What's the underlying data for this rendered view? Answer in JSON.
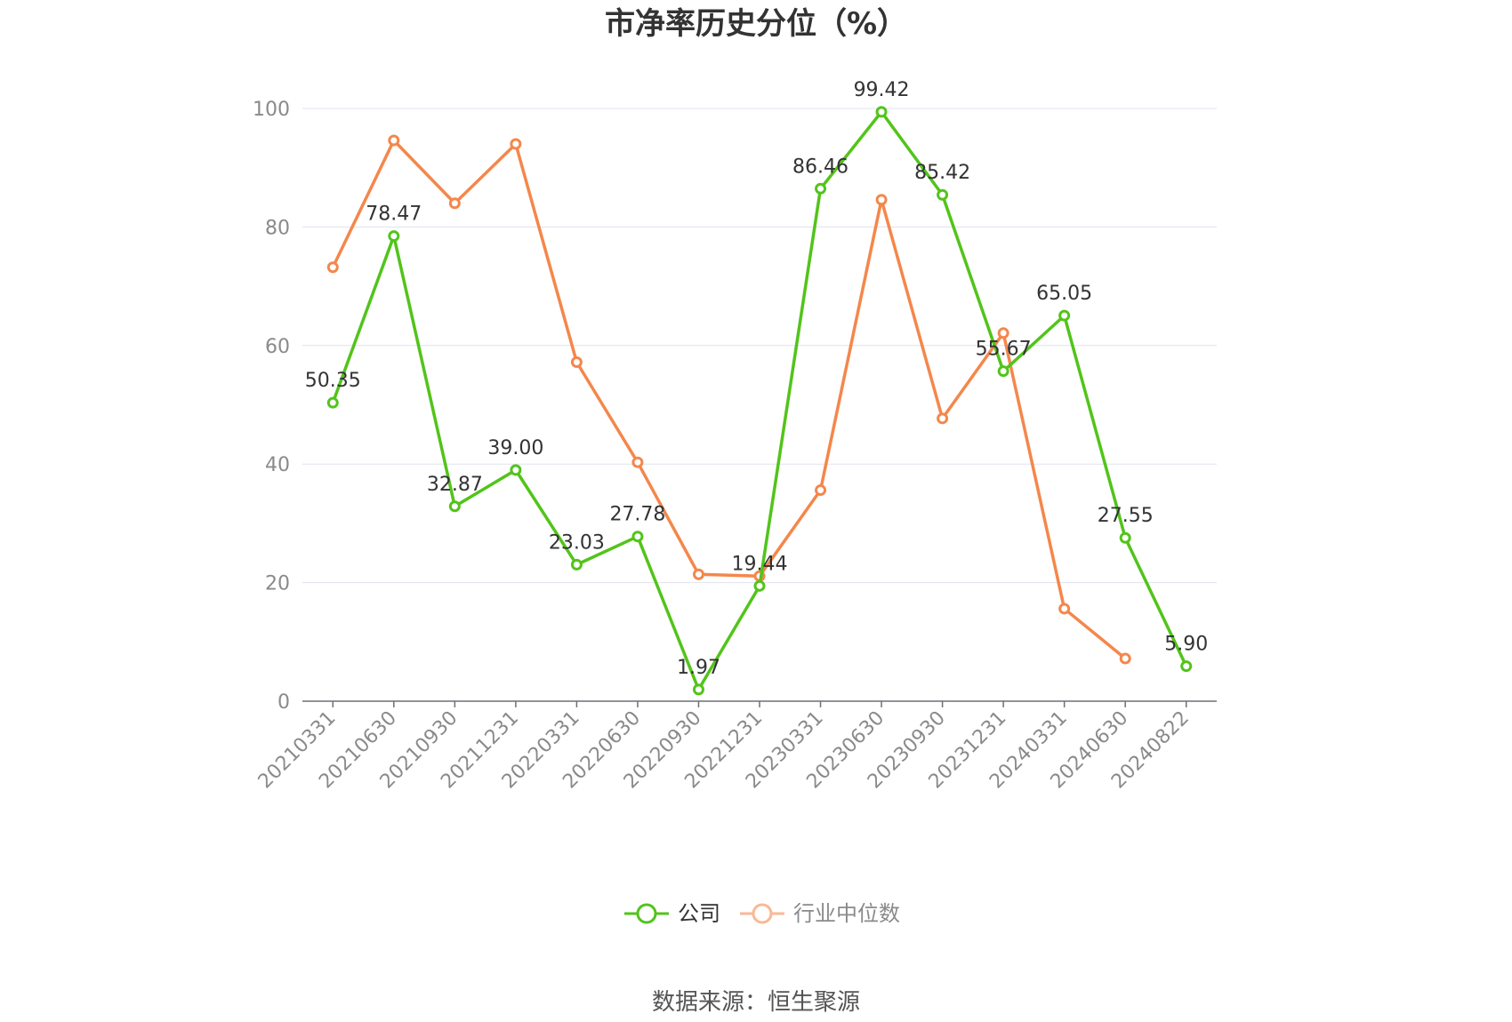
{
  "chart_data": {
    "type": "line",
    "title": "市净率历史分位（%）",
    "categories": [
      "20210331",
      "20210630",
      "20210930",
      "20211231",
      "20220331",
      "20220630",
      "20220930",
      "20221231",
      "20230331",
      "20230630",
      "20230930",
      "20231231",
      "20240331",
      "20240630",
      "20240822"
    ],
    "ylim": [
      0,
      100
    ],
    "yticks": [
      0,
      20,
      40,
      60,
      80,
      100
    ],
    "grid": true,
    "legend_position": "bottom-center",
    "series": [
      {
        "name": "公司",
        "color": "#52c41a",
        "show_labels": true,
        "values": [
          50.35,
          78.47,
          32.87,
          39.0,
          23.03,
          27.78,
          1.97,
          19.44,
          86.46,
          99.42,
          85.42,
          55.67,
          65.05,
          27.55,
          5.9
        ],
        "labels": [
          "50.35",
          "78.47",
          "32.87",
          "39.00",
          "23.03",
          "27.78",
          "1.97",
          "19.44",
          "86.46",
          "99.42",
          "85.42",
          "55.67",
          "65.05",
          "27.55",
          "5.90"
        ]
      },
      {
        "name": "行业中位数",
        "color": "#f4874b",
        "show_labels": false,
        "values": [
          73.2,
          94.6,
          84.0,
          94.0,
          57.2,
          40.3,
          21.4,
          21.1,
          35.6,
          84.6,
          47.7,
          62.1,
          15.6,
          7.2,
          null
        ]
      }
    ]
  },
  "legend": {
    "items": [
      {
        "label": "公司",
        "color": "#52c41a",
        "text_color": "#333333"
      },
      {
        "label": "行业中位数",
        "color": "#f9b896",
        "text_color": "#8a8a8a"
      }
    ]
  },
  "source": "数据来源：恒生聚源"
}
